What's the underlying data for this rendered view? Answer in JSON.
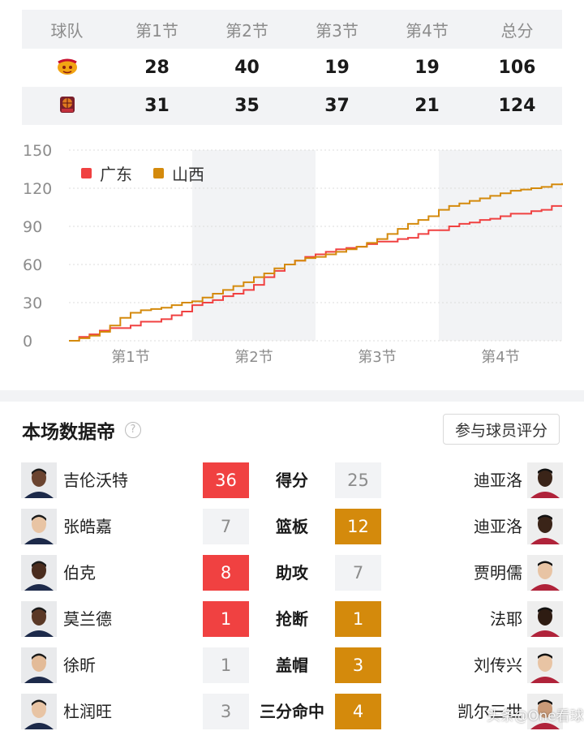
{
  "table": {
    "headers": [
      "球队",
      "第1节",
      "第2节",
      "第3节",
      "第4节",
      "总分"
    ],
    "rows": [
      {
        "team": "广东",
        "scores": [
          "28",
          "40",
          "19",
          "19",
          "106"
        ]
      },
      {
        "team": "山西",
        "scores": [
          "31",
          "35",
          "37",
          "21",
          "124"
        ]
      }
    ]
  },
  "chart_data": {
    "type": "line",
    "x_ticks": [
      "第1节",
      "第2节",
      "第3节",
      "第4节"
    ],
    "y_ticks": [
      "150",
      "120",
      "90",
      "60",
      "30",
      "0"
    ],
    "ylim": [
      0,
      150
    ],
    "xlim": [
      0,
      48
    ],
    "legend_position": "top-left",
    "series": [
      {
        "name": "广东",
        "color": "#f04141",
        "points": [
          [
            0,
            0
          ],
          [
            1,
            3
          ],
          [
            2,
            5
          ],
          [
            3,
            8
          ],
          [
            4,
            10
          ],
          [
            5,
            10
          ],
          [
            6,
            12
          ],
          [
            7,
            15
          ],
          [
            8,
            15
          ],
          [
            9,
            17
          ],
          [
            10,
            20
          ],
          [
            11,
            23
          ],
          [
            12,
            28
          ],
          [
            13,
            30
          ],
          [
            14,
            32
          ],
          [
            15,
            35
          ],
          [
            16,
            37
          ],
          [
            17,
            40
          ],
          [
            18,
            44
          ],
          [
            19,
            50
          ],
          [
            20,
            55
          ],
          [
            21,
            60
          ],
          [
            22,
            63
          ],
          [
            23,
            66
          ],
          [
            24,
            68
          ],
          [
            25,
            70
          ],
          [
            26,
            72
          ],
          [
            27,
            73
          ],
          [
            28,
            74
          ],
          [
            29,
            76
          ],
          [
            30,
            78
          ],
          [
            31,
            78
          ],
          [
            32,
            80
          ],
          [
            33,
            81
          ],
          [
            34,
            84
          ],
          [
            35,
            87
          ],
          [
            36,
            87
          ],
          [
            37,
            90
          ],
          [
            38,
            92
          ],
          [
            39,
            93
          ],
          [
            40,
            95
          ],
          [
            41,
            96
          ],
          [
            42,
            98
          ],
          [
            43,
            100
          ],
          [
            44,
            100
          ],
          [
            45,
            102
          ],
          [
            46,
            103
          ],
          [
            47,
            106
          ],
          [
            48,
            106
          ]
        ]
      },
      {
        "name": "山西",
        "color": "#d48a0c",
        "points": [
          [
            0,
            0
          ],
          [
            1,
            2
          ],
          [
            2,
            4
          ],
          [
            3,
            7
          ],
          [
            4,
            12
          ],
          [
            5,
            18
          ],
          [
            6,
            22
          ],
          [
            7,
            24
          ],
          [
            8,
            25
          ],
          [
            9,
            26
          ],
          [
            10,
            28
          ],
          [
            11,
            30
          ],
          [
            12,
            31
          ],
          [
            13,
            34
          ],
          [
            14,
            37
          ],
          [
            15,
            40
          ],
          [
            16,
            43
          ],
          [
            17,
            46
          ],
          [
            18,
            50
          ],
          [
            19,
            53
          ],
          [
            20,
            57
          ],
          [
            21,
            60
          ],
          [
            22,
            63
          ],
          [
            23,
            65
          ],
          [
            24,
            66
          ],
          [
            25,
            68
          ],
          [
            26,
            70
          ],
          [
            27,
            72
          ],
          [
            28,
            74
          ],
          [
            29,
            77
          ],
          [
            30,
            80
          ],
          [
            31,
            84
          ],
          [
            32,
            88
          ],
          [
            33,
            92
          ],
          [
            34,
            95
          ],
          [
            35,
            98
          ],
          [
            36,
            103
          ],
          [
            37,
            106
          ],
          [
            38,
            108
          ],
          [
            39,
            110
          ],
          [
            40,
            112
          ],
          [
            41,
            114
          ],
          [
            42,
            116
          ],
          [
            43,
            118
          ],
          [
            44,
            119
          ],
          [
            45,
            120
          ],
          [
            46,
            121
          ],
          [
            47,
            123
          ],
          [
            48,
            124
          ]
        ]
      }
    ]
  },
  "leaders": {
    "title": "本场数据帝",
    "rate_button": "参与球员评分",
    "rows": [
      {
        "left_player": "吉伦沃特",
        "left_value": "36",
        "stat": "得分",
        "right_value": "25",
        "right_player": "迪亚洛",
        "winner": "left"
      },
      {
        "left_player": "张皓嘉",
        "left_value": "7",
        "stat": "篮板",
        "right_value": "12",
        "right_player": "迪亚洛",
        "winner": "right"
      },
      {
        "left_player": "伯克",
        "left_value": "8",
        "stat": "助攻",
        "right_value": "7",
        "right_player": "贾明儒",
        "winner": "left"
      },
      {
        "left_player": "莫兰德",
        "left_value": "1",
        "stat": "抢断",
        "right_value": "1",
        "right_player": "法耶",
        "winner": "both"
      },
      {
        "left_player": "徐昕",
        "left_value": "1",
        "stat": "盖帽",
        "right_value": "3",
        "right_player": "刘传兴",
        "winner": "right"
      },
      {
        "left_player": "杜润旺",
        "left_value": "3",
        "stat": "三分命中",
        "right_value": "4",
        "right_player": "凯尔三世",
        "winner": "right"
      }
    ]
  },
  "watermark": "头条@One看球",
  "colors": {
    "home": "#f04141",
    "away": "#d48a0c",
    "band": "#f2f3f5"
  }
}
